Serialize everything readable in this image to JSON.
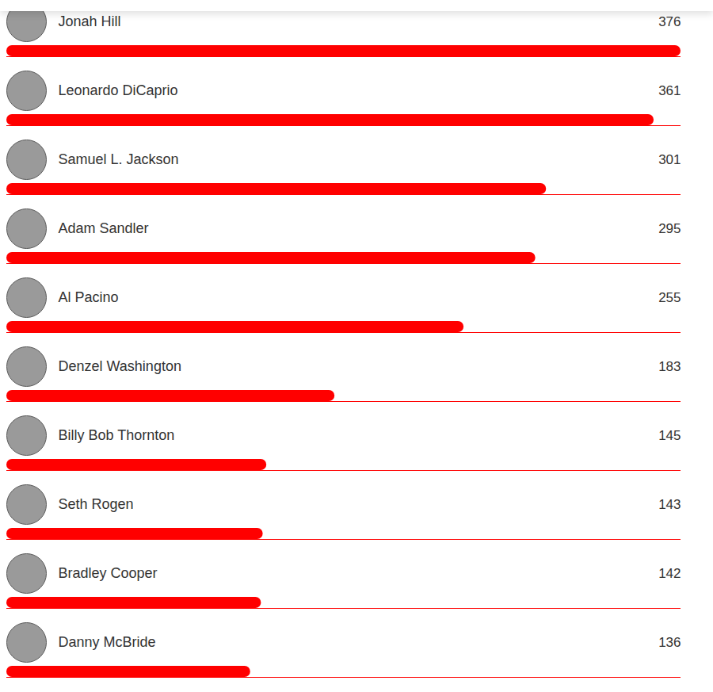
{
  "chart_data": {
    "type": "bar",
    "orientation": "horizontal",
    "categories": [
      "Jonah Hill",
      "Leonardo DiCaprio",
      "Samuel L. Jackson",
      "Adam Sandler",
      "Al Pacino",
      "Denzel Washington",
      "Billy Bob Thornton",
      "Seth Rogen",
      "Bradley Cooper",
      "Danny McBride"
    ],
    "values": [
      376,
      361,
      301,
      295,
      255,
      183,
      145,
      143,
      142,
      136
    ],
    "color": "#ff0000",
    "xlim": [
      0,
      376
    ],
    "tick_labels": false,
    "data_labels": true
  }
}
